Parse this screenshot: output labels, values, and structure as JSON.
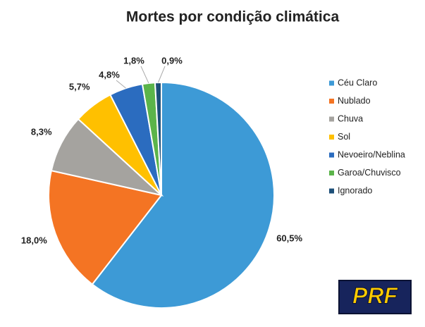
{
  "chart_data": {
    "type": "pie",
    "title": "Mortes por condição climática",
    "categories": [
      "Céu Claro",
      "Nublado",
      "Chuva",
      "Sol",
      "Nevoeiro/Neblina",
      "Garoa/Chuvisco",
      "Ignorado"
    ],
    "values": [
      60.5,
      18.0,
      8.3,
      5.7,
      4.8,
      1.8,
      0.9
    ],
    "value_labels": [
      "60,5%",
      "18,0%",
      "8,3%",
      "5,7%",
      "4,8%",
      "1,8%",
      "0,9%"
    ],
    "colors": [
      "#3d9ad6",
      "#f47423",
      "#a5a39f",
      "#ffc000",
      "#2b6cbf",
      "#5bb44a",
      "#1d4f78"
    ],
    "legend": "right"
  },
  "logo": "PRF"
}
